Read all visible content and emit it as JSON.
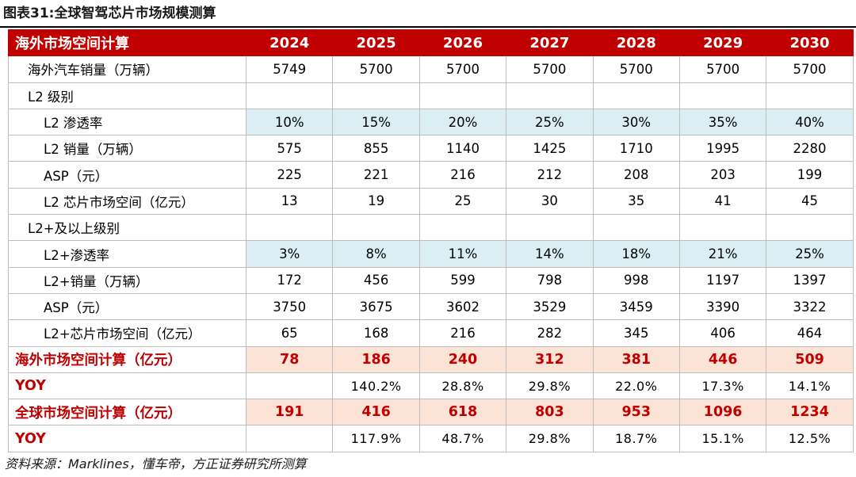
{
  "caption": "图表31:全球智驾芯片市场规模测算",
  "source": "资料来源：Marklines，懂车帝，方正证券研究所测算",
  "header": {
    "title": "海外市场空间计算",
    "years": [
      "2024",
      "2025",
      "2026",
      "2027",
      "2028",
      "2029",
      "2030"
    ]
  },
  "rows": [
    {
      "label": "海外汽车销量（万辆）",
      "values": [
        "5749",
        "5700",
        "5700",
        "5700",
        "5700",
        "5700",
        "5700"
      ]
    },
    {
      "label": "L2 级别",
      "values": [
        "",
        "",
        "",
        "",
        "",
        "",
        ""
      ]
    },
    {
      "label": "L2 渗透率",
      "values": [
        "10%",
        "15%",
        "20%",
        "25%",
        "30%",
        "35%",
        "40%"
      ]
    },
    {
      "label": "L2 销量（万辆）",
      "values": [
        "575",
        "855",
        "1140",
        "1425",
        "1710",
        "1995",
        "2280"
      ]
    },
    {
      "label": "ASP（元）",
      "values": [
        "225",
        "221",
        "216",
        "212",
        "208",
        "203",
        "199"
      ]
    },
    {
      "label": "L2 芯片市场空间（亿元）",
      "values": [
        "13",
        "19",
        "25",
        "30",
        "35",
        "41",
        "45"
      ]
    },
    {
      "label": "L2+及以上级别",
      "values": [
        "",
        "",
        "",
        "",
        "",
        "",
        ""
      ]
    },
    {
      "label": "L2+渗透率",
      "values": [
        "3%",
        "8%",
        "11%",
        "14%",
        "18%",
        "21%",
        "25%"
      ]
    },
    {
      "label": "L2+销量（万辆）",
      "values": [
        "172",
        "456",
        "599",
        "798",
        "998",
        "1197",
        "1397"
      ]
    },
    {
      "label": "ASP（元）",
      "values": [
        "3750",
        "3675",
        "3602",
        "3529",
        "3459",
        "3390",
        "3322"
      ]
    },
    {
      "label": "L2+芯片市场空间（亿元）",
      "values": [
        "65",
        "168",
        "216",
        "282",
        "345",
        "406",
        "464"
      ]
    },
    {
      "label": "海外市场空间计算（亿元）",
      "values": [
        "78",
        "186",
        "240",
        "312",
        "381",
        "446",
        "509"
      ]
    },
    {
      "label": "YOY",
      "values": [
        "",
        "140.2%",
        "28.8%",
        "29.8%",
        "22.0%",
        "17.3%",
        "14.1%"
      ]
    },
    {
      "label": "全球市场空间计算（亿元）",
      "values": [
        "191",
        "416",
        "618",
        "803",
        "953",
        "1096",
        "1234"
      ]
    },
    {
      "label": "YOY",
      "values": [
        "",
        "117.9%",
        "48.7%",
        "29.8%",
        "18.7%",
        "15.1%",
        "12.5%"
      ]
    }
  ]
}
